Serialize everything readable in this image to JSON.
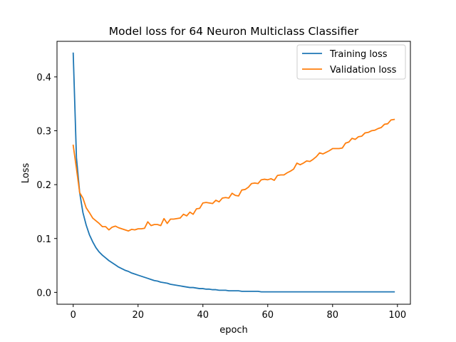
{
  "chart_data": {
    "type": "line",
    "title": "Model loss for 64 Neuron Multiclass Classifier",
    "xlabel": "epoch",
    "ylabel": "Loss",
    "xlim": [
      -5,
      104
    ],
    "ylim": [
      -0.022,
      0.466
    ],
    "xticks": [
      0,
      20,
      40,
      60,
      80,
      100
    ],
    "xtick_labels": [
      "0",
      "20",
      "40",
      "60",
      "80",
      "100"
    ],
    "yticks": [
      0.0,
      0.1,
      0.2,
      0.3,
      0.4
    ],
    "ytick_labels": [
      "0.0",
      "0.1",
      "0.2",
      "0.3",
      "0.4"
    ],
    "grid": false,
    "legend_position": "top-right",
    "x": [
      0,
      1,
      2,
      3,
      4,
      5,
      6,
      7,
      8,
      9,
      10,
      11,
      12,
      13,
      14,
      15,
      16,
      17,
      18,
      19,
      20,
      21,
      22,
      23,
      24,
      25,
      26,
      27,
      28,
      29,
      30,
      31,
      32,
      33,
      34,
      35,
      36,
      37,
      38,
      39,
      40,
      41,
      42,
      43,
      44,
      45,
      46,
      47,
      48,
      49,
      50,
      51,
      52,
      53,
      54,
      55,
      56,
      57,
      58,
      59,
      60,
      61,
      62,
      63,
      64,
      65,
      66,
      67,
      68,
      69,
      70,
      71,
      72,
      73,
      74,
      75,
      76,
      77,
      78,
      79,
      80,
      81,
      82,
      83,
      84,
      85,
      86,
      87,
      88,
      89,
      90,
      91,
      92,
      93,
      94,
      95,
      96,
      97,
      98,
      99
    ],
    "series": [
      {
        "name": "Training loss",
        "color": "#1f77b4",
        "values": [
          0.444,
          0.25,
          0.185,
          0.148,
          0.125,
          0.107,
          0.094,
          0.083,
          0.075,
          0.069,
          0.064,
          0.059,
          0.055,
          0.051,
          0.047,
          0.044,
          0.041,
          0.039,
          0.036,
          0.034,
          0.032,
          0.03,
          0.028,
          0.026,
          0.024,
          0.022,
          0.021,
          0.019,
          0.018,
          0.017,
          0.015,
          0.014,
          0.013,
          0.012,
          0.011,
          0.01,
          0.009,
          0.009,
          0.008,
          0.007,
          0.007,
          0.006,
          0.006,
          0.005,
          0.005,
          0.004,
          0.004,
          0.004,
          0.003,
          0.003,
          0.003,
          0.003,
          0.002,
          0.002,
          0.002,
          0.002,
          0.002,
          0.002,
          0.001,
          0.001,
          0.001,
          0.001,
          0.001,
          0.001,
          0.001,
          0.001,
          0.001,
          0.001,
          0.001,
          0.001,
          0.001,
          0.001,
          0.001,
          0.001,
          0.001,
          0.001,
          0.001,
          0.001,
          0.001,
          0.001,
          0.001,
          0.001,
          0.001,
          0.001,
          0.001,
          0.001,
          0.001,
          0.001,
          0.001,
          0.001,
          0.001,
          0.001,
          0.001,
          0.001,
          0.001,
          0.001,
          0.001,
          0.001,
          0.001,
          0.001
        ]
      },
      {
        "name": "Validation loss",
        "color": "#ff7f0e",
        "values": [
          0.273,
          0.23,
          0.185,
          0.175,
          0.157,
          0.148,
          0.138,
          0.133,
          0.128,
          0.122,
          0.122,
          0.116,
          0.121,
          0.123,
          0.12,
          0.118,
          0.116,
          0.114,
          0.117,
          0.116,
          0.118,
          0.118,
          0.119,
          0.131,
          0.124,
          0.126,
          0.126,
          0.124,
          0.137,
          0.128,
          0.136,
          0.136,
          0.137,
          0.138,
          0.145,
          0.142,
          0.149,
          0.145,
          0.155,
          0.156,
          0.166,
          0.167,
          0.166,
          0.165,
          0.171,
          0.168,
          0.175,
          0.176,
          0.175,
          0.184,
          0.18,
          0.179,
          0.19,
          0.191,
          0.195,
          0.202,
          0.203,
          0.202,
          0.209,
          0.21,
          0.209,
          0.211,
          0.208,
          0.217,
          0.218,
          0.218,
          0.222,
          0.225,
          0.229,
          0.24,
          0.237,
          0.24,
          0.244,
          0.243,
          0.247,
          0.252,
          0.259,
          0.257,
          0.26,
          0.263,
          0.267,
          0.267,
          0.267,
          0.268,
          0.277,
          0.279,
          0.286,
          0.284,
          0.289,
          0.29,
          0.296,
          0.297,
          0.3,
          0.301,
          0.304,
          0.306,
          0.312,
          0.313,
          0.32,
          0.321
        ]
      }
    ]
  }
}
